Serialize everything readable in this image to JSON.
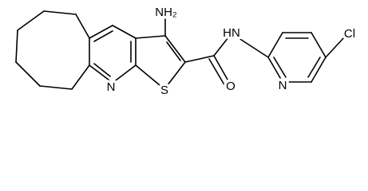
{
  "labels": {
    "amine": "NH₂",
    "ring_nitrogen": "N",
    "sulfur": "S",
    "oxygen": "O",
    "amide_nh": "HN",
    "pyridine_nitrogen": "N",
    "chlorine": "Cl"
  }
}
